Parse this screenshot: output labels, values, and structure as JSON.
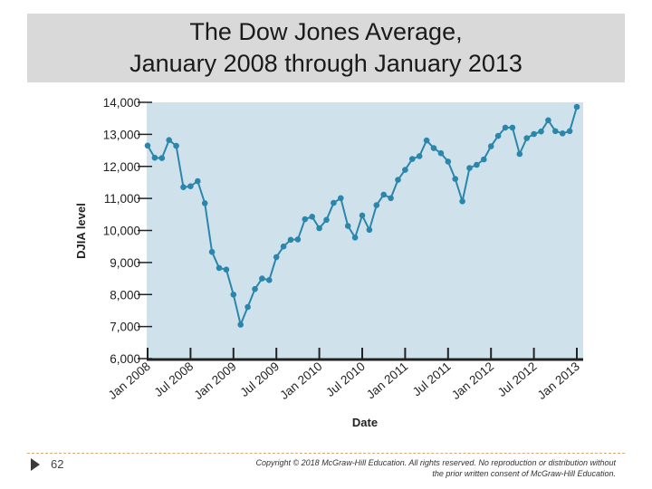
{
  "slide": {
    "title_line1": "The Dow Jones Average,",
    "title_line2": "January 2008 through January 2013",
    "page_number": "62",
    "copyright_line1": "Copyright © 2018 McGraw-Hill Education. All rights reserved. No reproduction or distribution without",
    "copyright_line2": "the prior written consent of McGraw-Hill Education."
  },
  "colors": {
    "plot_bg": "#cfe2ec",
    "line": "#2b86ab",
    "marker": "#2b86ab",
    "axis": "#222222"
  },
  "chart_data": {
    "type": "line",
    "xlabel": "Date",
    "ylabel": "DJIA level",
    "ylim": [
      6000,
      14000
    ],
    "yticks": [
      6000,
      7000,
      8000,
      9000,
      10000,
      11000,
      12000,
      13000,
      14000
    ],
    "ytick_labels": [
      "6,000",
      "7,000",
      "8,000",
      "9,000",
      "10,000",
      "11,000",
      "12,000",
      "13,000",
      "14,000"
    ],
    "xticks": [
      "Jan 2008",
      "Jul 2008",
      "Jan 2009",
      "Jul 2009",
      "Jan 2010",
      "Jul 2010",
      "Jan 2011",
      "Jul 2011",
      "Jan 2012",
      "Jul 2012",
      "Jan 2013"
    ],
    "grid": false,
    "x": [
      "2008-01",
      "2008-02",
      "2008-03",
      "2008-04",
      "2008-05",
      "2008-06",
      "2008-07",
      "2008-08",
      "2008-09",
      "2008-10",
      "2008-11",
      "2008-12",
      "2009-01",
      "2009-02",
      "2009-03",
      "2009-04",
      "2009-05",
      "2009-06",
      "2009-07",
      "2009-08",
      "2009-09",
      "2009-10",
      "2009-11",
      "2009-12",
      "2010-01",
      "2010-02",
      "2010-03",
      "2010-04",
      "2010-05",
      "2010-06",
      "2010-07",
      "2010-08",
      "2010-09",
      "2010-10",
      "2010-11",
      "2010-12",
      "2011-01",
      "2011-02",
      "2011-03",
      "2011-04",
      "2011-05",
      "2011-06",
      "2011-07",
      "2011-08",
      "2011-09",
      "2011-10",
      "2011-11",
      "2011-12",
      "2012-01",
      "2012-02",
      "2012-03",
      "2012-04",
      "2012-05",
      "2012-06",
      "2012-07",
      "2012-08",
      "2012-09",
      "2012-10",
      "2012-11",
      "2012-12",
      "2013-01"
    ],
    "series": [
      {
        "values": [
          12650,
          12270,
          12260,
          12820,
          12640,
          11350,
          11380,
          11540,
          10850,
          9330,
          8830,
          8780,
          8000,
          7060,
          7610,
          8170,
          8500,
          8450,
          9170,
          9500,
          9710,
          9720,
          10350,
          10430,
          10070,
          10330,
          10860,
          11010,
          10140,
          9780,
          10470,
          10020,
          10790,
          11120,
          11010,
          11580,
          11890,
          12230,
          12320,
          12810,
          12570,
          12410,
          12150,
          11610,
          10910,
          11950,
          12050,
          12220,
          12630,
          12950,
          13210,
          13210,
          12390,
          12880,
          13010,
          13090,
          13440,
          13100,
          13030,
          13100,
          13860
        ]
      }
    ]
  }
}
